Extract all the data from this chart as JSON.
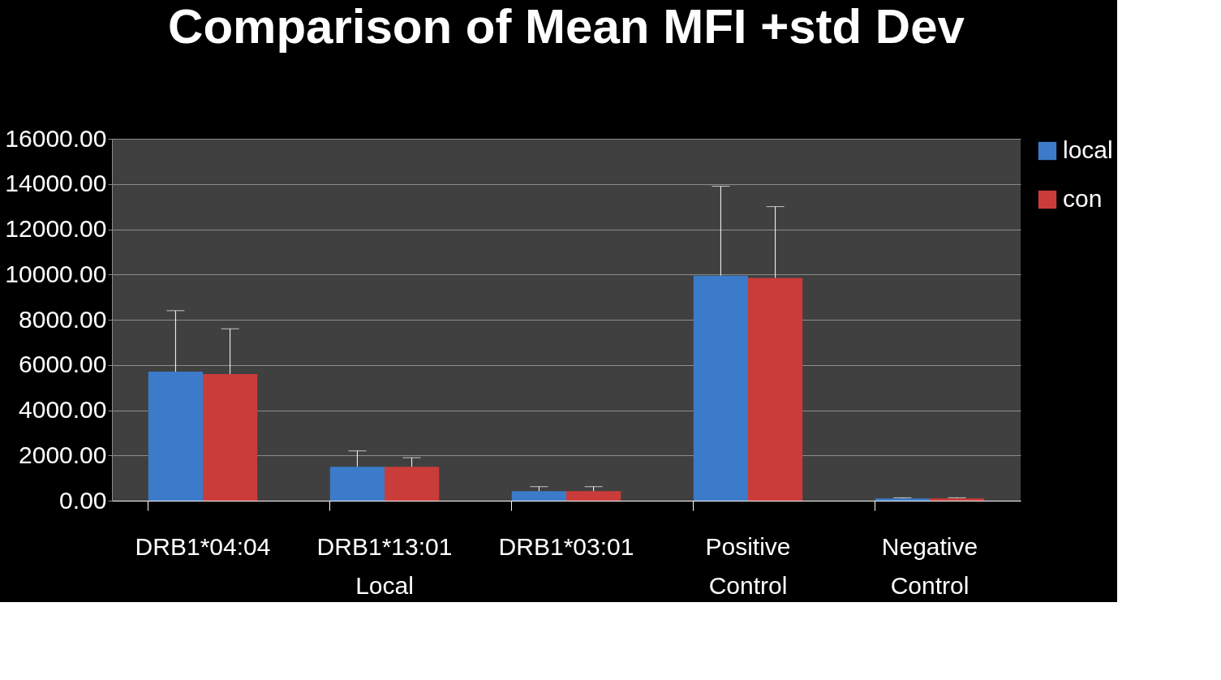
{
  "chart_data": {
    "type": "bar",
    "title": "Comparison of Mean MFI +std Dev",
    "categories": [
      "DRB1*04:04",
      "DRB1*13:01\nLocal",
      "DRB1*03:01",
      "Positive\nControl",
      "Negative\nControl"
    ],
    "series": [
      {
        "name": "local",
        "color": "#3b7bc9",
        "values": [
          5700,
          1500,
          420,
          9950,
          100
        ],
        "errors": [
          [
            5700,
            8400
          ],
          [
            1500,
            2200
          ],
          [
            420,
            620
          ],
          [
            9950,
            13900
          ],
          [
            100,
            130
          ]
        ]
      },
      {
        "name": "con",
        "color": "#c93c3a",
        "values": [
          5600,
          1500,
          420,
          9850,
          100
        ],
        "errors": [
          [
            5600,
            7600
          ],
          [
            1500,
            1900
          ],
          [
            420,
            620
          ],
          [
            9850,
            13000
          ],
          [
            100,
            130
          ]
        ]
      }
    ],
    "ylim": [
      0,
      16000
    ],
    "yticks": [
      {
        "value": 0,
        "label": "0.00"
      },
      {
        "value": 2000,
        "label": "2000.00"
      },
      {
        "value": 4000,
        "label": "4000.00"
      },
      {
        "value": 6000,
        "label": "6000.00"
      },
      {
        "value": 8000,
        "label": "8000.00"
      },
      {
        "value": 10000,
        "label": "10000.00"
      },
      {
        "value": 12000,
        "label": "12000.00"
      },
      {
        "value": 14000,
        "label": "14000.00"
      },
      {
        "value": 16000,
        "label": "16000.00"
      }
    ],
    "grid": "y",
    "legend": "right"
  }
}
